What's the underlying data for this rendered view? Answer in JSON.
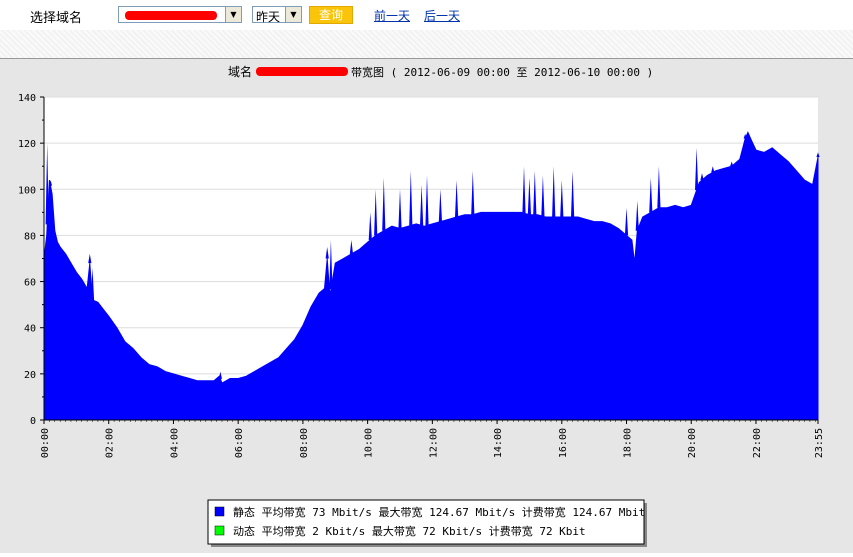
{
  "toolbar": {
    "domain_label": "选择域名",
    "domain_select_arrow": "▼",
    "day_value": "昨天",
    "day_select_arrow": "▼",
    "query_label": "查询",
    "prev_day_label": "前一天",
    "next_day_label": "后一天"
  },
  "colors": {
    "static_series": "#0000ff",
    "dynamic_series": "#00ff00",
    "plot_background": "#ffffff",
    "chart_background": "#e6e6e6",
    "query_button": "#f9c40a",
    "link": "#0033aa"
  },
  "chart_data": {
    "type": "area",
    "title_prefix": "域名",
    "title_suffix": "带宽图 ( 2012-06-09 00:00 至 2012-06-10 00:00 )",
    "xlabel": "",
    "ylabel": "",
    "ylim": [
      0,
      140
    ],
    "xlim_minutes": [
      0,
      1435
    ],
    "grid": true,
    "legend_position": "bottom",
    "x_ticks": [
      "00:00",
      "02:00",
      "04:00",
      "06:00",
      "08:00",
      "10:00",
      "12:00",
      "14:00",
      "16:00",
      "18:00",
      "20:00",
      "22:00",
      "23:55"
    ],
    "y_ticks": [
      0,
      20,
      40,
      60,
      80,
      100,
      120,
      140
    ],
    "series": [
      {
        "name": "静态",
        "legend_text": "静态 平均带宽 73 Mbit/s 最大带宽 124.67 Mbit/s 计费带宽 124.67 Mbit",
        "points": [
          [
            "00:00",
            70
          ],
          [
            "00:05",
            80
          ],
          [
            "00:10",
            104
          ],
          [
            "00:15",
            98
          ],
          [
            "00:20",
            82
          ],
          [
            "00:25",
            77
          ],
          [
            "00:30",
            75
          ],
          [
            "00:40",
            72
          ],
          [
            "00:50",
            68
          ],
          [
            "01:00",
            64
          ],
          [
            "01:10",
            61
          ],
          [
            "01:20",
            57
          ],
          [
            "01:25",
            68
          ],
          [
            "01:30",
            52
          ],
          [
            "01:40",
            51
          ],
          [
            "01:50",
            48
          ],
          [
            "02:00",
            45
          ],
          [
            "02:15",
            40
          ],
          [
            "02:30",
            34
          ],
          [
            "02:45",
            31
          ],
          [
            "03:00",
            27
          ],
          [
            "03:15",
            24
          ],
          [
            "03:30",
            23
          ],
          [
            "03:45",
            21
          ],
          [
            "04:00",
            20
          ],
          [
            "04:15",
            19
          ],
          [
            "04:30",
            18
          ],
          [
            "04:45",
            17
          ],
          [
            "05:00",
            17
          ],
          [
            "05:15",
            17
          ],
          [
            "05:25",
            19
          ],
          [
            "05:30",
            16
          ],
          [
            "05:45",
            18
          ],
          [
            "06:00",
            18
          ],
          [
            "06:15",
            19
          ],
          [
            "06:30",
            21
          ],
          [
            "06:45",
            23
          ],
          [
            "07:00",
            25
          ],
          [
            "07:15",
            27
          ],
          [
            "07:30",
            31
          ],
          [
            "07:45",
            35
          ],
          [
            "08:00",
            41
          ],
          [
            "08:15",
            49
          ],
          [
            "08:30",
            55
          ],
          [
            "08:40",
            57
          ],
          [
            "08:45",
            70
          ],
          [
            "08:50",
            54
          ],
          [
            "09:00",
            68
          ],
          [
            "09:15",
            70
          ],
          [
            "09:30",
            72
          ],
          [
            "09:45",
            74
          ],
          [
            "10:00",
            77
          ],
          [
            "10:15",
            80
          ],
          [
            "10:30",
            82
          ],
          [
            "10:45",
            84
          ],
          [
            "11:00",
            83
          ],
          [
            "11:15",
            84
          ],
          [
            "11:30",
            85
          ],
          [
            "11:45",
            84
          ],
          [
            "12:00",
            85
          ],
          [
            "12:15",
            86
          ],
          [
            "12:30",
            87
          ],
          [
            "12:45",
            88
          ],
          [
            "13:00",
            89
          ],
          [
            "13:15",
            89
          ],
          [
            "13:30",
            90
          ],
          [
            "13:45",
            90
          ],
          [
            "14:00",
            90
          ],
          [
            "14:15",
            90
          ],
          [
            "14:30",
            90
          ],
          [
            "14:45",
            90
          ],
          [
            "15:00",
            89
          ],
          [
            "15:15",
            89
          ],
          [
            "15:30",
            88
          ],
          [
            "15:45",
            88
          ],
          [
            "16:00",
            88
          ],
          [
            "16:15",
            88
          ],
          [
            "16:30",
            88
          ],
          [
            "16:45",
            87
          ],
          [
            "17:00",
            86
          ],
          [
            "17:15",
            86
          ],
          [
            "17:30",
            85
          ],
          [
            "17:45",
            83
          ],
          [
            "18:00",
            80
          ],
          [
            "18:10",
            78
          ],
          [
            "18:15",
            68
          ],
          [
            "18:20",
            82
          ],
          [
            "18:30",
            88
          ],
          [
            "18:45",
            90
          ],
          [
            "19:00",
            92
          ],
          [
            "19:15",
            92
          ],
          [
            "19:30",
            93
          ],
          [
            "19:45",
            92
          ],
          [
            "20:00",
            93
          ],
          [
            "20:15",
            103
          ],
          [
            "20:30",
            106
          ],
          [
            "20:45",
            108
          ],
          [
            "21:00",
            109
          ],
          [
            "21:15",
            110
          ],
          [
            "21:30",
            113
          ],
          [
            "21:40",
            122
          ],
          [
            "21:45",
            124.67
          ],
          [
            "21:50",
            122
          ],
          [
            "22:00",
            117
          ],
          [
            "22:15",
            116
          ],
          [
            "22:30",
            118
          ],
          [
            "22:45",
            115
          ],
          [
            "23:00",
            112
          ],
          [
            "23:15",
            108
          ],
          [
            "23:30",
            104
          ],
          [
            "23:45",
            102
          ],
          [
            "23:50",
            108
          ],
          [
            "23:55",
            114
          ]
        ],
        "spikes": [
          [
            "00:06",
            120
          ],
          [
            "00:12",
            104
          ],
          [
            "01:25",
            72
          ],
          [
            "01:30",
            66
          ],
          [
            "05:27",
            21
          ],
          [
            "08:45",
            75
          ],
          [
            "08:52",
            78
          ],
          [
            "09:30",
            78
          ],
          [
            "10:05",
            90
          ],
          [
            "10:15",
            100
          ],
          [
            "10:30",
            105
          ],
          [
            "11:00",
            100
          ],
          [
            "11:20",
            108
          ],
          [
            "11:40",
            102
          ],
          [
            "11:50",
            106
          ],
          [
            "12:15",
            100
          ],
          [
            "12:45",
            104
          ],
          [
            "13:15",
            108
          ],
          [
            "14:50",
            110
          ],
          [
            "15:00",
            105
          ],
          [
            "15:10",
            108
          ],
          [
            "15:25",
            106
          ],
          [
            "15:45",
            110
          ],
          [
            "16:00",
            104
          ],
          [
            "16:20",
            108
          ],
          [
            "18:00",
            92
          ],
          [
            "18:20",
            95
          ],
          [
            "18:45",
            105
          ],
          [
            "19:00",
            110
          ],
          [
            "20:10",
            118
          ],
          [
            "20:20",
            107
          ],
          [
            "20:40",
            110
          ],
          [
            "21:15",
            112
          ],
          [
            "21:40",
            124
          ],
          [
            "23:55",
            116
          ]
        ]
      },
      {
        "name": "动态",
        "legend_text": "动态 平均带宽 2 Kbit/s 最大带宽 72 Kbit/s 计费带宽 72 Kbit",
        "points": []
      }
    ]
  }
}
